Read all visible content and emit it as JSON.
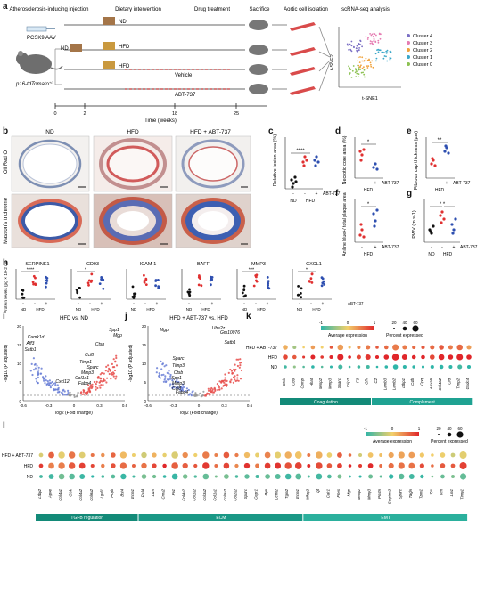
{
  "panel_labels": [
    "a",
    "b",
    "c",
    "d",
    "e",
    "f",
    "g",
    "h",
    "i",
    "j",
    "k",
    "l"
  ],
  "a": {
    "pcsk9": "PCSK9 AAV",
    "mouse_label": "p16-tdTomato",
    "mouse_sup": "+/-",
    "stage_titles": [
      "Atherosclerosis-inducing injection",
      "Dietary intervention",
      "Drug treatment",
      "Sacrifice",
      "Aortic cell isolation",
      "scRNA-seq analysis"
    ],
    "diets": [
      "ND",
      "ND",
      "HFD",
      "HFD"
    ],
    "vehicle": "Vehicle",
    "abt": "ABT-737",
    "timeline_ticks": [
      "0",
      "2",
      "18",
      "25"
    ],
    "timeline_label": "Time (weeks)",
    "tsne_y": "t-SNE2",
    "tsne_x": "t-SNE1",
    "clusters": [
      "Cluster 4",
      "Cluster 3",
      "Cluster 2",
      "Cluster 1",
      "Cluster 0"
    ],
    "cluster_colors": [
      "#7b6fc4",
      "#e57bb1",
      "#f0a23b",
      "#3aa7c9",
      "#8cc152"
    ]
  },
  "b": {
    "col_titles": [
      "ND",
      "HFD",
      "HFD + ABT-737"
    ],
    "row_titles": [
      "Oil Red O",
      "Masson's trichrome"
    ]
  },
  "c": {
    "ylabel": "Relative lesion area (%)",
    "sig": "****",
    "x_groups": [
      "ND",
      "HFD"
    ],
    "abt_signs": [
      "-",
      "-",
      "+"
    ],
    "abt_label": "ABT-737"
  },
  "d": {
    "ylabel": "Necrotic core area (%)",
    "sig": "*",
    "x_group": "HFD",
    "abt_signs": [
      "-",
      "+"
    ],
    "abt_label": "ABT-737"
  },
  "e": {
    "ylabel": "Fibrous cap thickness (µm)",
    "sig": "**",
    "x_group": "HFD",
    "abt_signs": [
      "-",
      "+"
    ],
    "abt_label": "ABT-737"
  },
  "f": {
    "ylabel": "Aniline blue+/ total plaque area",
    "sig": "*",
    "x_group": "HFD",
    "abt_signs": [
      "-",
      "+"
    ],
    "abt_label": "ABT-737"
  },
  "g": {
    "ylabel": "PWV (m s-1)",
    "sig": "* *",
    "x_groups": [
      "ND",
      "HFD"
    ],
    "abt_signs": [
      "-",
      "-",
      "+"
    ],
    "abt_label": "ABT-737"
  },
  "h": {
    "ylabel": "Protein levels (pg × 10-2 ml-1)",
    "proteins": [
      {
        "name": "SERPINE1",
        "sig": "****"
      },
      {
        "name": "CD93",
        "sig": "*"
      },
      {
        "name": "ICAM-1",
        "sig": ""
      },
      {
        "name": "BAFF",
        "sig": ""
      },
      {
        "name": "MMP3",
        "sig": "***"
      },
      {
        "name": "CXCL1",
        "sig": "*"
      }
    ],
    "x_groups": [
      "ND",
      "HFD"
    ],
    "abt_signs": [
      "-",
      "-",
      "+"
    ],
    "abt_label": "ABT-737"
  },
  "i": {
    "title": "HFD vs. ND",
    "ylabel": "-log10 (P adjusted)",
    "xlabel": "log2 (Fold change)",
    "xticks": [
      "-0.6",
      "-0.3",
      "0",
      "0.3",
      "0.6"
    ],
    "yticks": [
      "0",
      "5",
      "10",
      "15",
      "20"
    ],
    "genes_up": [
      "Spp1",
      "Mgp",
      "Ctsb",
      "Ccl8",
      "Timp1",
      "Sparc",
      "Mmp3",
      "Col1a1",
      "Fabp4"
    ],
    "genes_down": [
      "Camk1d",
      "Aff3",
      "Satb1",
      "Cxcl12"
    ]
  },
  "j": {
    "title": "HFD + ABT-737 vs. HFD",
    "ylabel": "-log10 (P adjusted)",
    "xlabel": "log2 (Fold change)",
    "xticks": [
      "-0.6",
      "-0.3",
      "0",
      "0.3",
      "0.6"
    ],
    "yticks": [
      "0",
      "5",
      "10",
      "15",
      "20"
    ],
    "genes_up": [
      "Ube2z",
      "Gm10076",
      "Satb1"
    ],
    "genes_down": [
      "Mgp",
      "Sparc",
      "Timp3",
      "Ctsb",
      "Spp1",
      "Mmp3",
      "Ccl8",
      "Fabp4"
    ]
  },
  "k": {
    "rows": [
      "HFD + ABT-737",
      "HFD",
      "ND"
    ],
    "genes": [
      "Ctsk",
      "Cd9",
      "Comp",
      "Hhat",
      "Mmp2",
      "Mmp3",
      "Sparc",
      "Crip2",
      "F3",
      "Cfh",
      "C2",
      "Lamb3",
      "Lamb2",
      "Ltbp1",
      "C4b",
      "Cpq",
      "Anxa5",
      "Col4a2",
      "Cfd",
      "Timp2",
      "Gsdc4"
    ],
    "groups": [
      {
        "label": "Coagulation",
        "span": 10
      },
      {
        "label": "Complement",
        "span": 11
      }
    ],
    "legend_expr_title": "Average expression",
    "legend_expr_ticks": [
      "-1",
      "0",
      "1"
    ],
    "legend_pct_title": "Percent expressed",
    "legend_pct_ticks": [
      "20",
      "40",
      "60"
    ],
    "expr": [
      [
        0.2,
        -0.4,
        0.0,
        0.3,
        0.0,
        0.7,
        0.3,
        0.1,
        0.4,
        0.5,
        0.7,
        0.6,
        0.5,
        0.5,
        0.6,
        0.7,
        0.6,
        0.7,
        0.5,
        0.6,
        0.3
      ],
      [
        0.8,
        0.7,
        0.9,
        1.0,
        0.9,
        1.0,
        1.0,
        1.0,
        0.8,
        0.9,
        1.0,
        1.0,
        1.0,
        1.0,
        1.0,
        1.0,
        0.8,
        1.0,
        1.0,
        1.0,
        1.0
      ],
      [
        -0.9,
        -0.5,
        -0.8,
        -1.0,
        -0.8,
        -1.0,
        -0.9,
        -0.9,
        -0.9,
        -0.9,
        -1.0,
        -1.0,
        -1.0,
        -1.0,
        -1.0,
        -1.0,
        -1.0,
        -1.0,
        -1.0,
        -0.9,
        -1.0
      ]
    ],
    "pct": [
      [
        40,
        25,
        10,
        30,
        15,
        20,
        50,
        15,
        25,
        35,
        20,
        30,
        55,
        35,
        25,
        25,
        35,
        40,
        35,
        50,
        35
      ],
      [
        40,
        30,
        15,
        35,
        20,
        25,
        55,
        20,
        35,
        45,
        25,
        40,
        60,
        45,
        30,
        30,
        40,
        50,
        40,
        55,
        40
      ],
      [
        20,
        15,
        10,
        20,
        10,
        15,
        35,
        10,
        20,
        25,
        10,
        20,
        40,
        25,
        20,
        15,
        25,
        30,
        25,
        35,
        25
      ]
    ]
  },
  "l": {
    "rows": [
      "HFD + ABT-737",
      "HFD",
      "ND"
    ],
    "genes": [
      "Ltbp2",
      "Apoe",
      "Col4a1",
      "Ctsk",
      "Col4a2",
      "Col6a2",
      "Lgal1",
      "Pcgb",
      "Bst4",
      "Ecm1",
      "Fstl4",
      "Lum",
      "Cma2",
      "Fn1",
      "Col4a2",
      "Col1a2",
      "Col3a2",
      "Col1a1",
      "Col5a2",
      "Col2a2",
      "Sparc",
      "Cepr1",
      "Bgn",
      "Ccnd2",
      "Tgm2",
      "Ecm1",
      "Mfap2",
      "Igt",
      "Calr1",
      "Fnes",
      "Mgp",
      "Mmp2",
      "Mmp3",
      "Postn",
      "Serpine2",
      "Sparc",
      "Tagln",
      "Tpm1",
      "Zyx",
      "Vim",
      "Lm1",
      "Timp1"
    ],
    "groups": [
      {
        "label": "TGFB regulation",
        "span": 10
      },
      {
        "label": "ECM",
        "span": 16
      },
      {
        "label": "EMT",
        "span": 16
      }
    ],
    "legend_expr_title": "Average expression",
    "legend_expr_ticks": [
      "-1",
      "0",
      "1"
    ],
    "legend_pct_title": "Percent expressed",
    "legend_pct_ticks": [
      "20",
      "40",
      "60"
    ],
    "colors": {
      "low": "#2fb5a8",
      "mid": "#f2d06b",
      "high": "#e0262a",
      "group_bar": "#138a78"
    }
  }
}
